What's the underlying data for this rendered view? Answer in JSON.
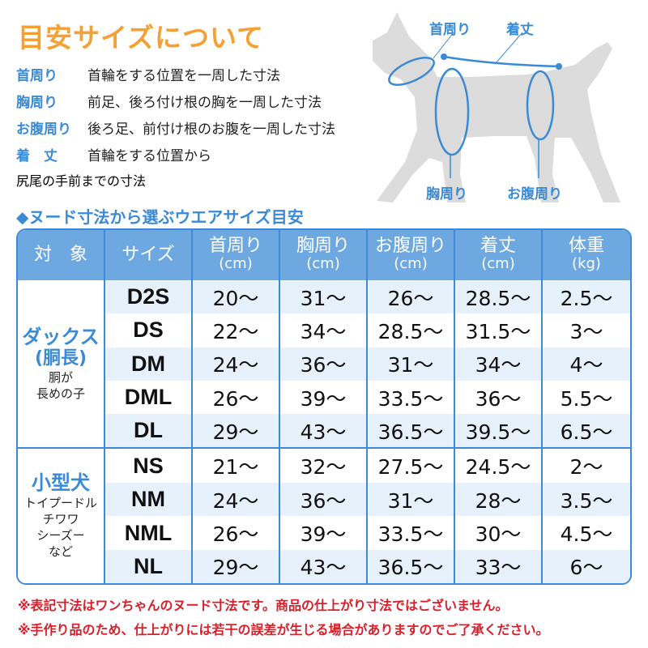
{
  "title": "目安サイズについて",
  "definitions": [
    {
      "term": "首周り",
      "desc": "首輪をする位置を一周した寸法"
    },
    {
      "term": "胸周り",
      "desc": "前足、後ろ付け根の胸を一周した寸法"
    },
    {
      "term": "お腹周り",
      "desc": "後ろ足、前付け根のお腹を一周した寸法"
    },
    {
      "term": "着　丈",
      "desc": "首輪をする位置から",
      "desc2": "尻尾の手前までの寸法"
    }
  ],
  "diagram": {
    "neck": "首周り",
    "length": "着丈",
    "chest": "胸周り",
    "belly": "お腹周り",
    "silhouette_color": "#dcdcdc",
    "line_color": "#3a8ad6"
  },
  "subtitle": "◆ヌード寸法から選ぶウエアサイズ目安",
  "table": {
    "headers": [
      {
        "label": "対　象",
        "unit": ""
      },
      {
        "label": "サイズ",
        "unit": ""
      },
      {
        "label": "首周り",
        "unit": "(cm)"
      },
      {
        "label": "胸周り",
        "unit": "(cm)"
      },
      {
        "label": "お腹周り",
        "unit": "(cm)"
      },
      {
        "label": "着丈",
        "unit": "(cm)"
      },
      {
        "label": "体重",
        "unit": "(kg)"
      }
    ],
    "groups": [
      {
        "name": "ダックス",
        "sub": "(胴長)",
        "desc1": "胴が",
        "desc2": "長めの子",
        "desc3": "",
        "rows": [
          [
            "D2S",
            "20〜",
            "31〜",
            "26〜",
            "28.5〜",
            "2.5〜"
          ],
          [
            "DS",
            "22〜",
            "34〜",
            "28.5〜",
            "31.5〜",
            "3〜"
          ],
          [
            "DM",
            "24〜",
            "36〜",
            "31〜",
            "34〜",
            "4〜"
          ],
          [
            "DML",
            "26〜",
            "39〜",
            "33.5〜",
            "36〜",
            "5.5〜"
          ],
          [
            "DL",
            "29〜",
            "43〜",
            "36.5〜",
            "39.5〜",
            "6.5〜"
          ]
        ]
      },
      {
        "name": "小型犬",
        "sub": "",
        "desc1": "トイプードル",
        "desc2": "チワワ",
        "desc3": "シーズー",
        "desc4": "など",
        "rows": [
          [
            "NS",
            "21〜",
            "32〜",
            "27.5〜",
            "24.5〜",
            "2〜"
          ],
          [
            "NM",
            "24〜",
            "36〜",
            "31〜",
            "28〜",
            "3.5〜"
          ],
          [
            "NML",
            "26〜",
            "39〜",
            "33.5〜",
            "30〜",
            "4.5〜"
          ],
          [
            "NL",
            "29〜",
            "43〜",
            "36.5〜",
            "33〜",
            "6〜"
          ]
        ]
      }
    ]
  },
  "notes": [
    "※表記寸法はワンちゃんのヌード寸法です。商品の仕上がり寸法ではございません。",
    "※手作り品のため、仕上がりには若干の誤差が生じる場合がありますのでご了承ください。"
  ],
  "colors": {
    "title": "#f5a033",
    "accent": "#3a8ad6",
    "header_bg": "#6ea8e0",
    "alt_row": "#e6f1fb",
    "note": "#d8202a"
  }
}
